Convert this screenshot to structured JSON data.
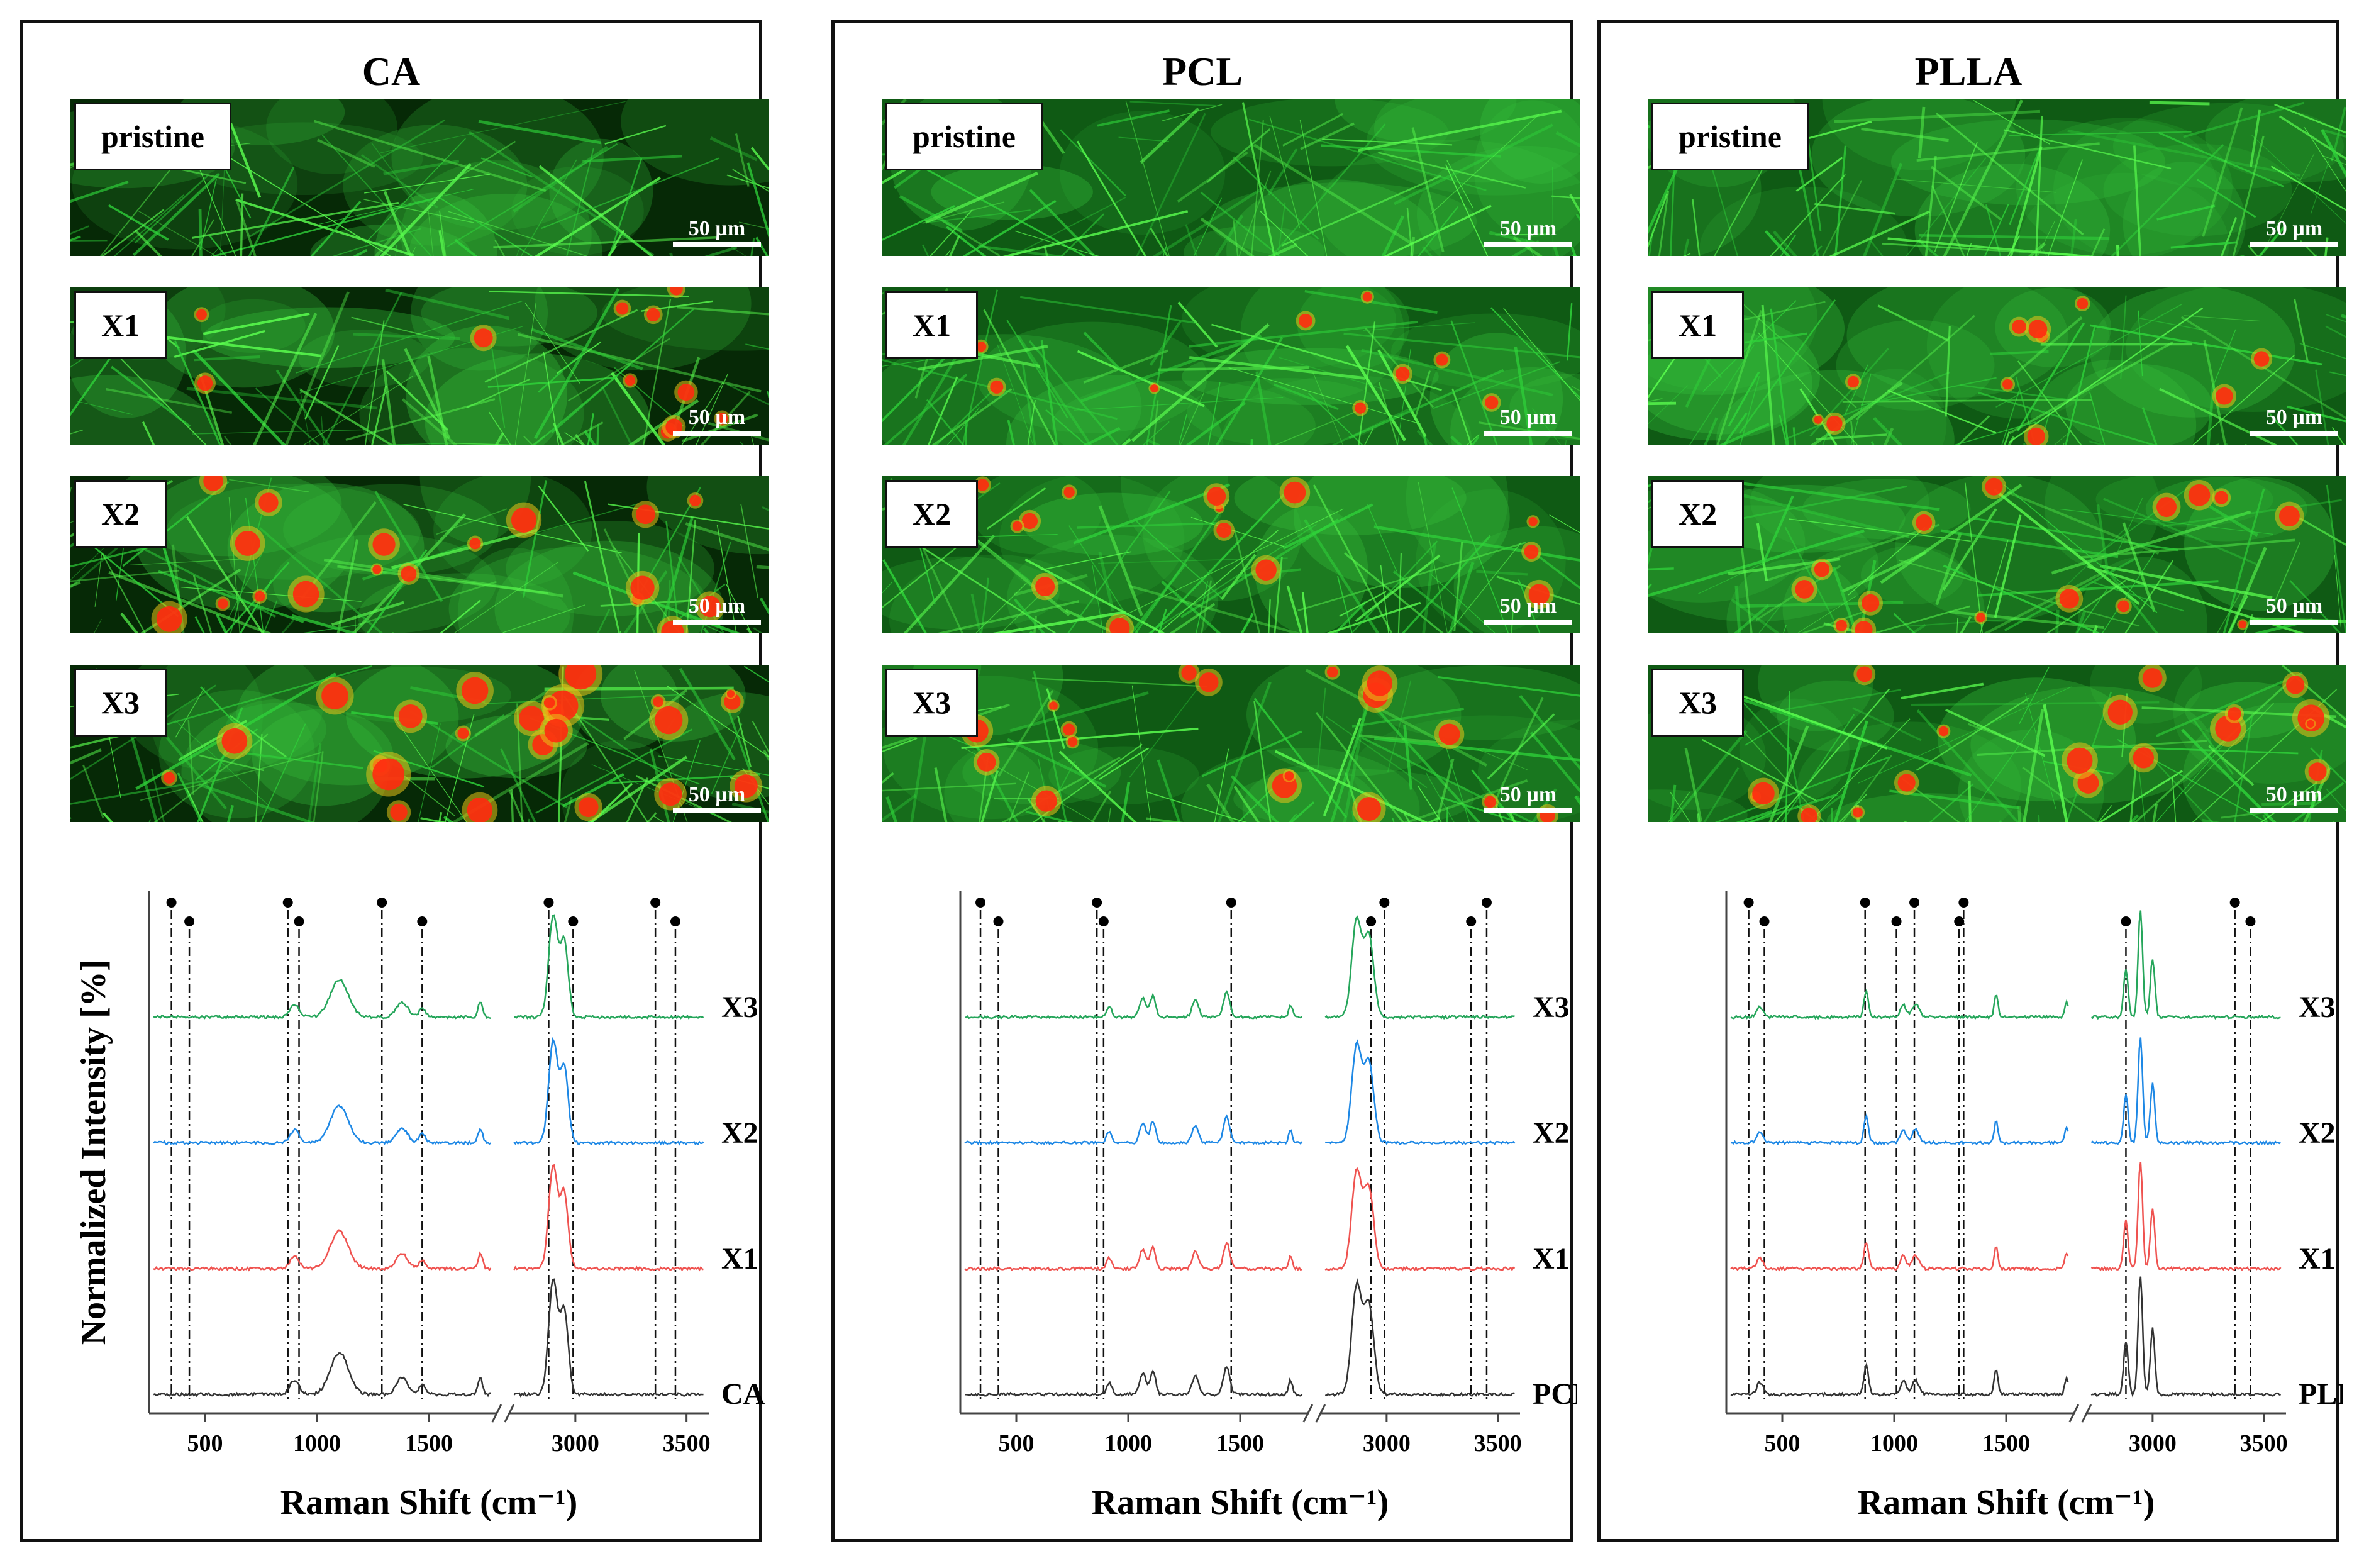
{
  "panels": [
    {
      "title": "CA",
      "images": [
        {
          "label": "pristine",
          "scale": "50 µm",
          "red_amount": 0
        },
        {
          "label": "X1",
          "scale": "50 µm",
          "red_amount": 0.35
        },
        {
          "label": "X2",
          "scale": "50 µm",
          "red_amount": 0.6
        },
        {
          "label": "X3",
          "scale": "50 µm",
          "red_amount": 0.8
        }
      ],
      "chart_data": {
        "type": "line",
        "title": "",
        "xlabel": "Raman Shift (cm⁻¹)",
        "ylabel": "Normalized Intensity [%]",
        "x_ticks": [
          "500",
          "1000",
          "1500",
          "3000",
          "3500"
        ],
        "axis_break": [
          1800,
          2700
        ],
        "series": [
          {
            "name": "CA",
            "color": "#333333"
          },
          {
            "name": "X1",
            "color": "#ef5350"
          },
          {
            "name": "X2",
            "color": "#1e88e5"
          },
          {
            "name": "X3",
            "color": "#26a65b"
          }
        ],
        "marker_lines": [
          350,
          430,
          870,
          920,
          1290,
          1470,
          2880,
          2990,
          3360,
          3450
        ]
      }
    },
    {
      "title": "PCL",
      "images": [
        {
          "label": "pristine",
          "scale": "50 µm",
          "red_amount": 0
        },
        {
          "label": "X1",
          "scale": "50 µm",
          "red_amount": 0.3
        },
        {
          "label": "X2",
          "scale": "50 µm",
          "red_amount": 0.45
        },
        {
          "label": "X3",
          "scale": "50 µm",
          "red_amount": 0.55
        }
      ],
      "chart_data": {
        "type": "line",
        "title": "",
        "xlabel": "Raman Shift (cm⁻¹)",
        "ylabel": "",
        "x_ticks": [
          "500",
          "1000",
          "1500",
          "3000",
          "3500"
        ],
        "axis_break": [
          1800,
          2700
        ],
        "series": [
          {
            "name": "PCL",
            "color": "#333333"
          },
          {
            "name": "X1",
            "color": "#ef5350"
          },
          {
            "name": "X2",
            "color": "#1e88e5"
          },
          {
            "name": "X3",
            "color": "#26a65b"
          }
        ],
        "marker_lines": [
          340,
          420,
          860,
          890,
          1460,
          2930,
          2990,
          3380,
          3450
        ]
      }
    },
    {
      "title": "PLLA",
      "images": [
        {
          "label": "pristine",
          "scale": "50 µm",
          "red_amount": 0
        },
        {
          "label": "X1",
          "scale": "50 µm",
          "red_amount": 0.35
        },
        {
          "label": "X2",
          "scale": "50 µm",
          "red_amount": 0.5
        },
        {
          "label": "X3",
          "scale": "50 µm",
          "red_amount": 0.6
        }
      ],
      "chart_data": {
        "type": "line",
        "title": "",
        "xlabel": "Raman Shift (cm⁻¹)",
        "ylabel": "",
        "x_ticks": [
          "500",
          "1000",
          "1500",
          "3000",
          "3500"
        ],
        "axis_break": [
          1800,
          2700
        ],
        "series": [
          {
            "name": "PLLA",
            "color": "#333333"
          },
          {
            "name": "X1",
            "color": "#ef5350"
          },
          {
            "name": "X2",
            "color": "#1e88e5"
          },
          {
            "name": "X3",
            "color": "#26a65b"
          }
        ],
        "marker_lines": [
          350,
          420,
          870,
          1010,
          1090,
          1290,
          1310,
          2880,
          3370,
          3440
        ]
      }
    }
  ]
}
